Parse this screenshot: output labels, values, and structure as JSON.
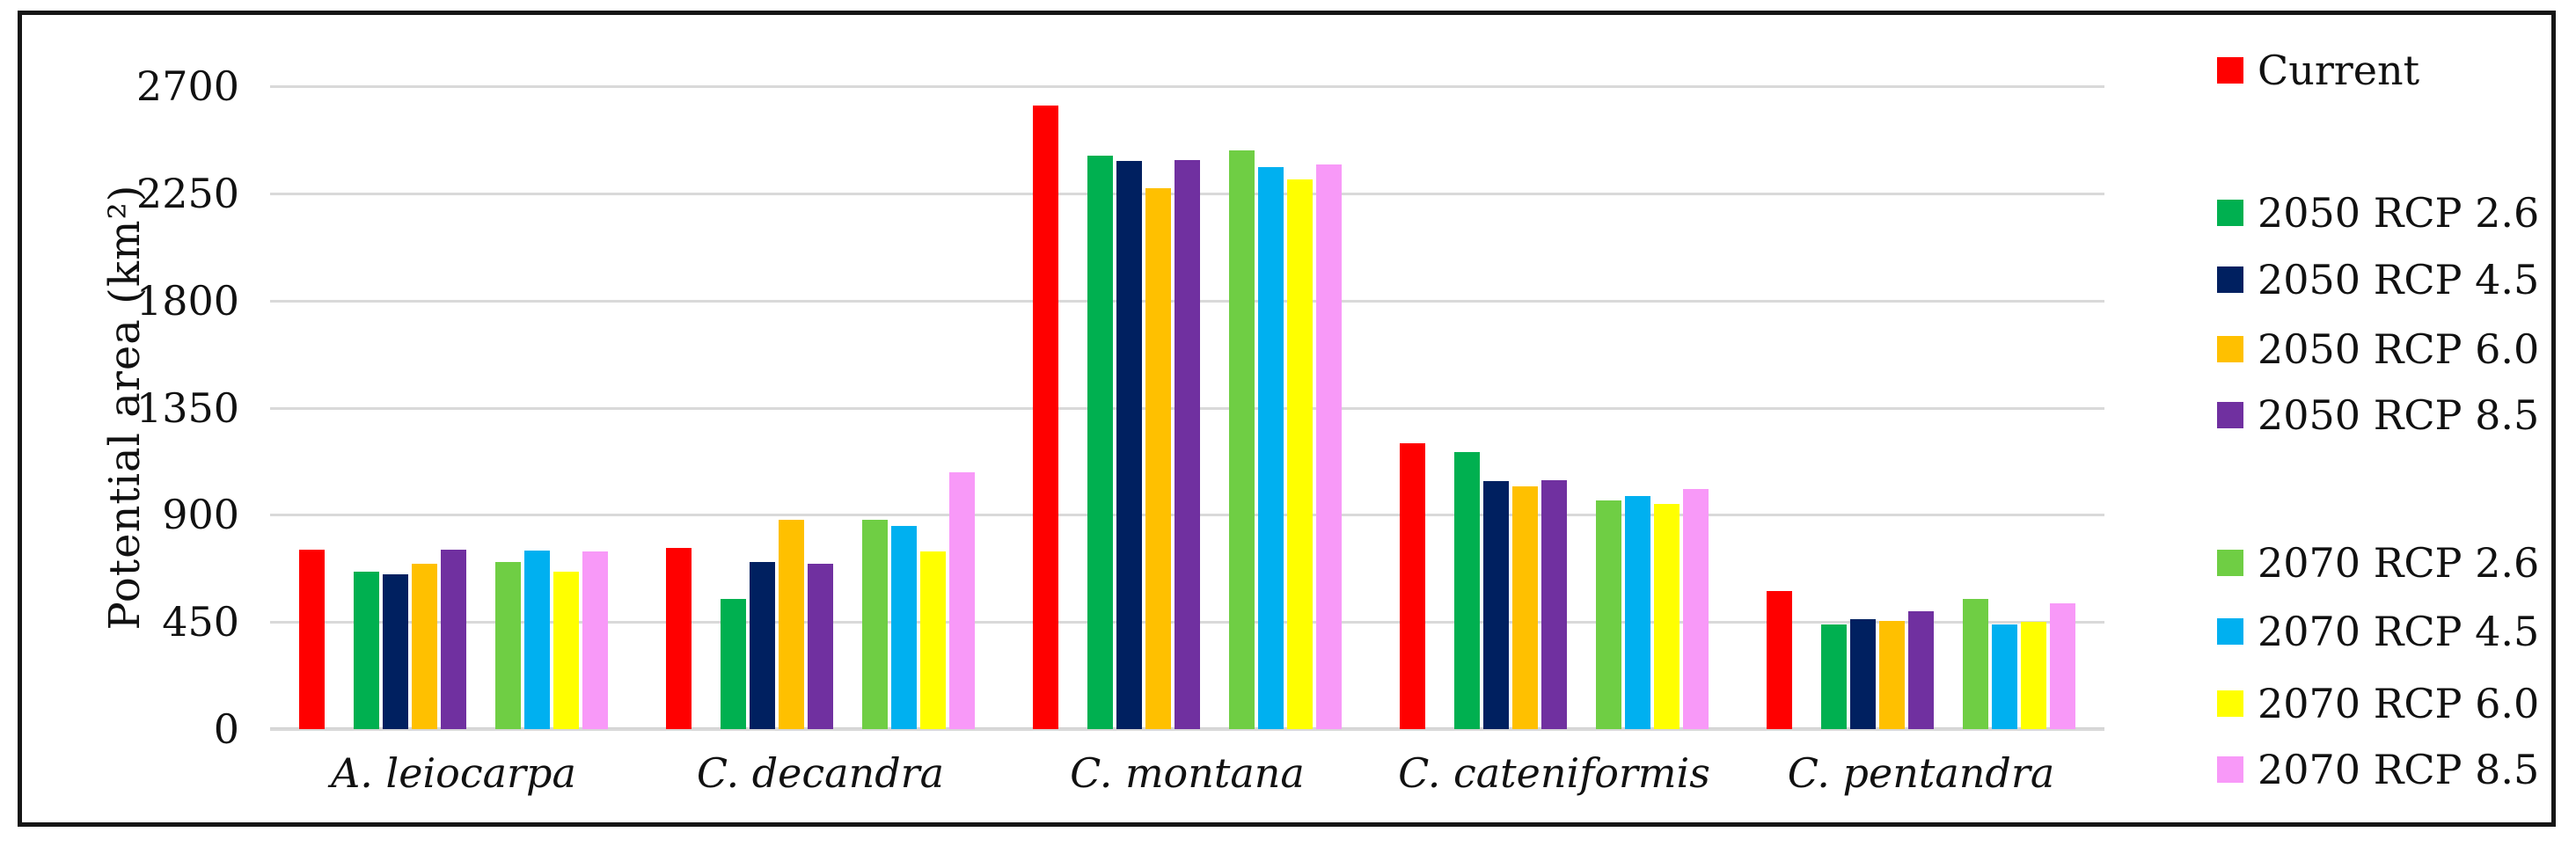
{
  "figure": {
    "y_axis_title": "Potential area (km²)"
  },
  "chart_data": {
    "type": "bar",
    "title": "",
    "xlabel": "",
    "ylabel": "Potential area (km²)",
    "ylim": [
      0,
      2700
    ],
    "yticks": [
      0,
      450,
      900,
      1350,
      1800,
      2250,
      2700
    ],
    "grid": "horizontal-only",
    "legend_position": "right",
    "categories": [
      "A. leiocarpa",
      "C. decandra",
      "C. montana",
      "C. cateniformis",
      "C. pentandra"
    ],
    "series": [
      {
        "name": "Current",
        "color": "#FF0000",
        "values": [
          755,
          760,
          2620,
          1200,
          580
        ]
      },
      {
        "name": "2050 RCP 2.6",
        "color": "#00B050",
        "values": [
          660,
          545,
          2410,
          1165,
          440
        ]
      },
      {
        "name": "2050 RCP 4.5",
        "color": "#002060",
        "values": [
          650,
          700,
          2385,
          1040,
          460
        ]
      },
      {
        "name": "2050 RCP 6.0",
        "color": "#FFC000",
        "values": [
          695,
          880,
          2270,
          1020,
          455
        ]
      },
      {
        "name": "2050 RCP 8.5",
        "color": "#7030A0",
        "values": [
          755,
          695,
          2390,
          1045,
          495
        ]
      },
      {
        "name": "2070 RCP 2.6",
        "color": "#6FCE44",
        "values": [
          700,
          880,
          2430,
          960,
          545
        ]
      },
      {
        "name": "2070 RCP 4.5",
        "color": "#00B0F0",
        "values": [
          750,
          855,
          2360,
          980,
          440
        ]
      },
      {
        "name": "2070 RCP 6.0",
        "color": "#FFFF00",
        "values": [
          660,
          745,
          2310,
          945,
          450
        ]
      },
      {
        "name": "2070 RCP 8.5",
        "color": "#F899F8",
        "values": [
          745,
          1080,
          2370,
          1010,
          530
        ]
      }
    ]
  }
}
